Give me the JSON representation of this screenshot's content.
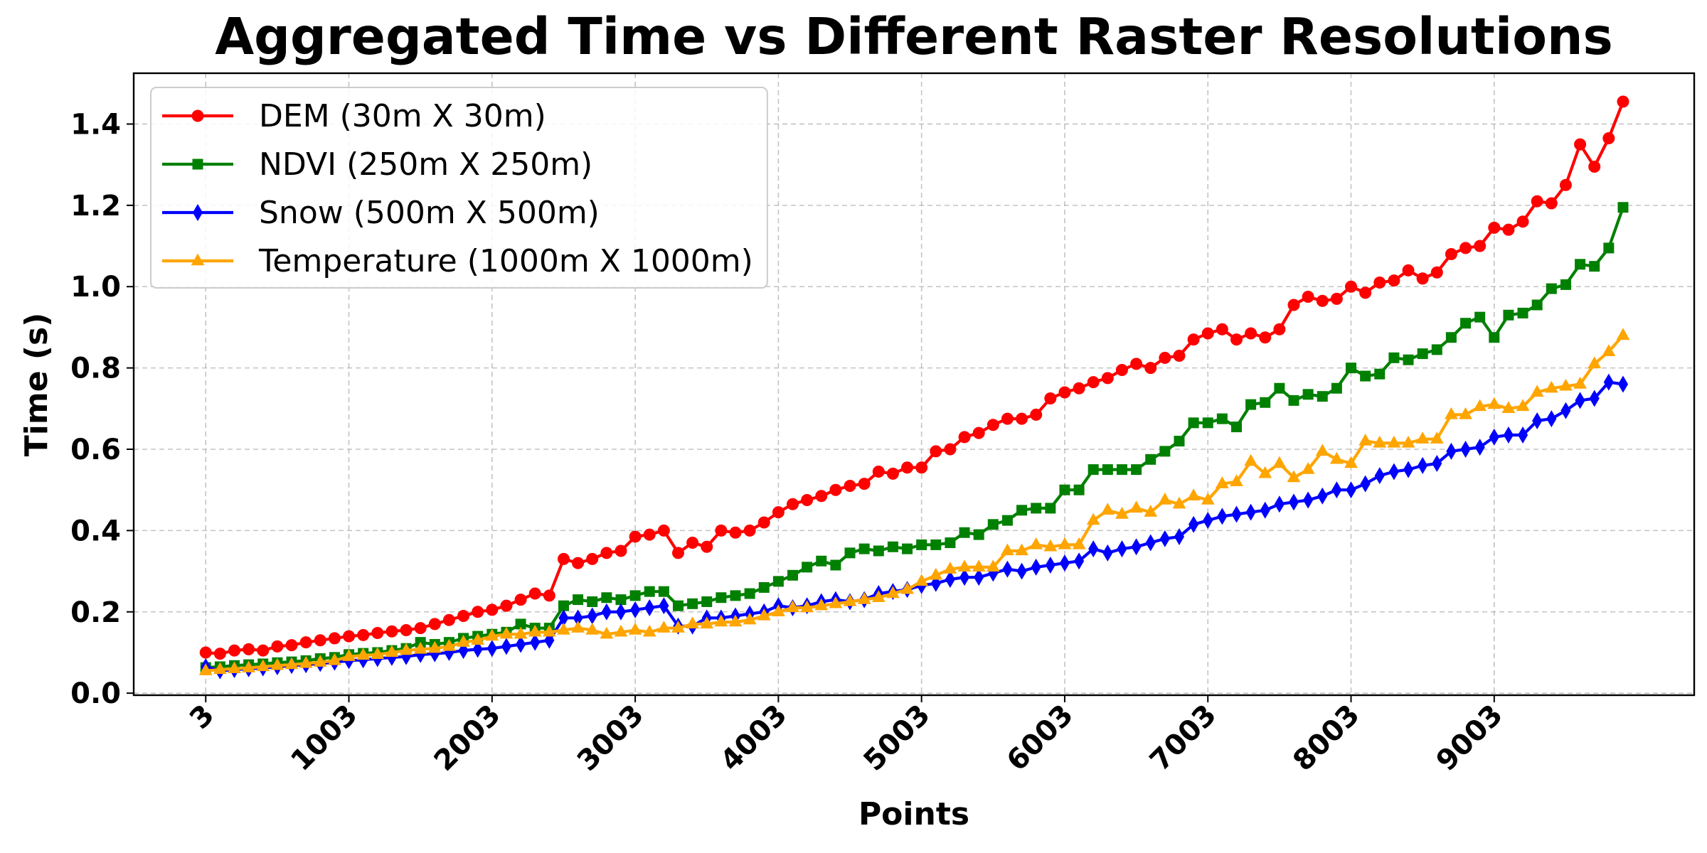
{
  "chart_data": {
    "type": "line",
    "title": "Aggregated Time vs Different Raster Resolutions",
    "xlabel": "Points",
    "ylabel": "Time (s)",
    "xlim": [
      -500,
      10400
    ],
    "ylim": [
      -0.005,
      1.525
    ],
    "x_ticks": [
      3,
      1003,
      2003,
      3003,
      4003,
      5003,
      6003,
      7003,
      8003,
      9003
    ],
    "y_ticks": [
      0.0,
      0.2,
      0.4,
      0.6,
      0.8,
      1.0,
      1.2,
      1.4
    ],
    "y_tick_labels": [
      "0.0",
      "0.2",
      "0.4",
      "0.6",
      "0.8",
      "1.0",
      "1.2",
      "1.4"
    ],
    "grid": true,
    "legend_position": "upper-left",
    "x": [
      3,
      103,
      203,
      303,
      403,
      503,
      603,
      703,
      803,
      903,
      1003,
      1103,
      1203,
      1303,
      1403,
      1503,
      1603,
      1703,
      1803,
      1903,
      2003,
      2103,
      2203,
      2303,
      2403,
      2503,
      2603,
      2703,
      2803,
      2903,
      3003,
      3103,
      3203,
      3303,
      3403,
      3503,
      3603,
      3703,
      3803,
      3903,
      4003,
      4103,
      4203,
      4303,
      4403,
      4503,
      4603,
      4703,
      4803,
      4903,
      5003,
      5103,
      5203,
      5303,
      5403,
      5503,
      5603,
      5703,
      5803,
      5903,
      6003,
      6103,
      6203,
      6303,
      6403,
      6503,
      6603,
      6703,
      6803,
      6903,
      7003,
      7103,
      7203,
      7303,
      7403,
      7503,
      7603,
      7703,
      7803,
      7903,
      8003,
      8103,
      8203,
      8303,
      8403,
      8503,
      8603,
      8703,
      8803,
      8903,
      9003,
      9103,
      9203,
      9303,
      9403,
      9503,
      9603,
      9703,
      9803,
      9903
    ],
    "series": [
      {
        "name": "DEM (30m X 30m)",
        "color": "#ff0000",
        "marker": "circle",
        "values": [
          0.1,
          0.097,
          0.105,
          0.108,
          0.105,
          0.115,
          0.118,
          0.125,
          0.13,
          0.135,
          0.14,
          0.143,
          0.148,
          0.152,
          0.155,
          0.16,
          0.17,
          0.18,
          0.19,
          0.2,
          0.205,
          0.215,
          0.23,
          0.245,
          0.24,
          0.33,
          0.32,
          0.33,
          0.345,
          0.35,
          0.385,
          0.39,
          0.4,
          0.345,
          0.37,
          0.36,
          0.4,
          0.395,
          0.4,
          0.42,
          0.445,
          0.465,
          0.475,
          0.485,
          0.5,
          0.51,
          0.515,
          0.545,
          0.54,
          0.555,
          0.555,
          0.595,
          0.6,
          0.63,
          0.64,
          0.66,
          0.675,
          0.675,
          0.685,
          0.725,
          0.74,
          0.75,
          0.765,
          0.775,
          0.795,
          0.81,
          0.8,
          0.825,
          0.83,
          0.87,
          0.885,
          0.895,
          0.87,
          0.885,
          0.875,
          0.895,
          0.955,
          0.975,
          0.965,
          0.97,
          1.0,
          0.985,
          1.01,
          1.015,
          1.04,
          1.02,
          1.035,
          1.08,
          1.095,
          1.1,
          1.145,
          1.14,
          1.16,
          1.21,
          1.205,
          1.25,
          1.35,
          1.295,
          1.365,
          1.455
        ]
      },
      {
        "name": "NDVI (250m X 250m)",
        "color": "#008000",
        "marker": "square",
        "values": [
          0.063,
          0.065,
          0.068,
          0.07,
          0.072,
          0.075,
          0.077,
          0.08,
          0.085,
          0.088,
          0.095,
          0.098,
          0.1,
          0.105,
          0.11,
          0.125,
          0.12,
          0.125,
          0.135,
          0.14,
          0.145,
          0.15,
          0.17,
          0.16,
          0.16,
          0.215,
          0.23,
          0.225,
          0.235,
          0.23,
          0.24,
          0.25,
          0.25,
          0.215,
          0.22,
          0.225,
          0.235,
          0.24,
          0.245,
          0.26,
          0.275,
          0.29,
          0.31,
          0.325,
          0.315,
          0.345,
          0.355,
          0.35,
          0.36,
          0.355,
          0.365,
          0.365,
          0.37,
          0.395,
          0.39,
          0.415,
          0.425,
          0.45,
          0.455,
          0.455,
          0.5,
          0.5,
          0.55,
          0.55,
          0.55,
          0.55,
          0.575,
          0.595,
          0.62,
          0.665,
          0.665,
          0.675,
          0.655,
          0.71,
          0.715,
          0.75,
          0.72,
          0.735,
          0.73,
          0.75,
          0.8,
          0.78,
          0.785,
          0.825,
          0.82,
          0.835,
          0.845,
          0.875,
          0.91,
          0.925,
          0.875,
          0.93,
          0.935,
          0.955,
          0.995,
          1.005,
          1.055,
          1.05,
          1.095,
          1.195
        ]
      },
      {
        "name": "Snow (500m X 500m)",
        "color": "#0000ff",
        "marker": "thin_diamond",
        "values": [
          0.065,
          0.055,
          0.058,
          0.06,
          0.062,
          0.065,
          0.068,
          0.07,
          0.073,
          0.076,
          0.08,
          0.082,
          0.085,
          0.088,
          0.09,
          0.095,
          0.097,
          0.1,
          0.105,
          0.108,
          0.11,
          0.115,
          0.12,
          0.125,
          0.13,
          0.185,
          0.185,
          0.19,
          0.2,
          0.2,
          0.205,
          0.21,
          0.215,
          0.165,
          0.165,
          0.185,
          0.185,
          0.19,
          0.195,
          0.2,
          0.215,
          0.21,
          0.215,
          0.225,
          0.23,
          0.225,
          0.23,
          0.245,
          0.25,
          0.255,
          0.265,
          0.27,
          0.28,
          0.285,
          0.285,
          0.295,
          0.305,
          0.3,
          0.31,
          0.315,
          0.32,
          0.325,
          0.355,
          0.345,
          0.355,
          0.36,
          0.37,
          0.38,
          0.385,
          0.415,
          0.425,
          0.435,
          0.44,
          0.445,
          0.45,
          0.465,
          0.47,
          0.475,
          0.485,
          0.5,
          0.5,
          0.515,
          0.535,
          0.545,
          0.55,
          0.56,
          0.565,
          0.595,
          0.6,
          0.605,
          0.63,
          0.635,
          0.635,
          0.67,
          0.675,
          0.695,
          0.72,
          0.725,
          0.765,
          0.76
        ]
      },
      {
        "name": "Temperature (1000m X 1000m)",
        "color": "#ffa500",
        "marker": "triangle",
        "values": [
          0.055,
          0.058,
          0.06,
          0.062,
          0.065,
          0.068,
          0.07,
          0.073,
          0.076,
          0.08,
          0.09,
          0.093,
          0.095,
          0.1,
          0.105,
          0.108,
          0.11,
          0.115,
          0.125,
          0.13,
          0.14,
          0.145,
          0.145,
          0.15,
          0.15,
          0.155,
          0.16,
          0.155,
          0.145,
          0.15,
          0.155,
          0.15,
          0.16,
          0.16,
          0.17,
          0.17,
          0.175,
          0.175,
          0.18,
          0.19,
          0.2,
          0.21,
          0.21,
          0.215,
          0.22,
          0.225,
          0.23,
          0.235,
          0.245,
          0.255,
          0.275,
          0.29,
          0.305,
          0.31,
          0.31,
          0.31,
          0.35,
          0.35,
          0.365,
          0.36,
          0.365,
          0.365,
          0.425,
          0.45,
          0.44,
          0.455,
          0.445,
          0.475,
          0.465,
          0.485,
          0.475,
          0.515,
          0.52,
          0.57,
          0.54,
          0.565,
          0.53,
          0.55,
          0.595,
          0.575,
          0.565,
          0.62,
          0.615,
          0.615,
          0.615,
          0.625,
          0.625,
          0.685,
          0.685,
          0.705,
          0.71,
          0.7,
          0.705,
          0.74,
          0.75,
          0.755,
          0.76,
          0.81,
          0.84,
          0.88
        ]
      }
    ]
  }
}
